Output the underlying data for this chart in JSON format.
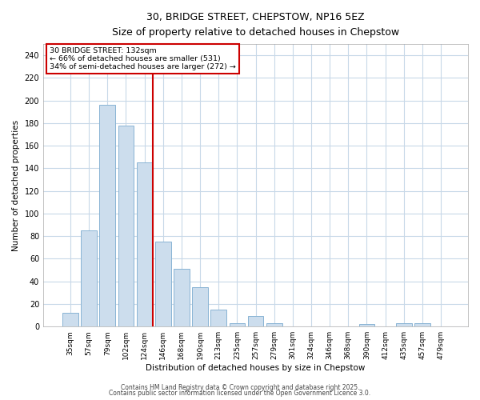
{
  "title_line1": "30, BRIDGE STREET, CHEPSTOW, NP16 5EZ",
  "title_line2": "Size of property relative to detached houses in Chepstow",
  "categories": [
    "35sqm",
    "57sqm",
    "79sqm",
    "102sqm",
    "124sqm",
    "146sqm",
    "168sqm",
    "190sqm",
    "213sqm",
    "235sqm",
    "257sqm",
    "279sqm",
    "301sqm",
    "324sqm",
    "346sqm",
    "368sqm",
    "390sqm",
    "412sqm",
    "435sqm",
    "457sqm",
    "479sqm"
  ],
  "values": [
    12,
    85,
    196,
    178,
    145,
    75,
    51,
    35,
    15,
    3,
    9,
    3,
    0,
    0,
    0,
    0,
    2,
    0,
    3,
    3,
    0
  ],
  "bar_color": "#ccdded",
  "bar_edge_color": "#89b4d4",
  "background_color": "#ffffff",
  "grid_color": "#c8d8e8",
  "ylabel": "Number of detached properties",
  "xlabel": "Distribution of detached houses by size in Chepstow",
  "ylim": [
    0,
    250
  ],
  "yticks": [
    0,
    20,
    40,
    60,
    80,
    100,
    120,
    140,
    160,
    180,
    200,
    220,
    240
  ],
  "property_line_color": "#cc0000",
  "property_line_index": 4,
  "annotation_text": "30 BRIDGE STREET: 132sqm\n← 66% of detached houses are smaller (531)\n34% of semi-detached houses are larger (272) →",
  "footer_line1": "Contains HM Land Registry data © Crown copyright and database right 2025.",
  "footer_line2": "Contains public sector information licensed under the Open Government Licence 3.0."
}
